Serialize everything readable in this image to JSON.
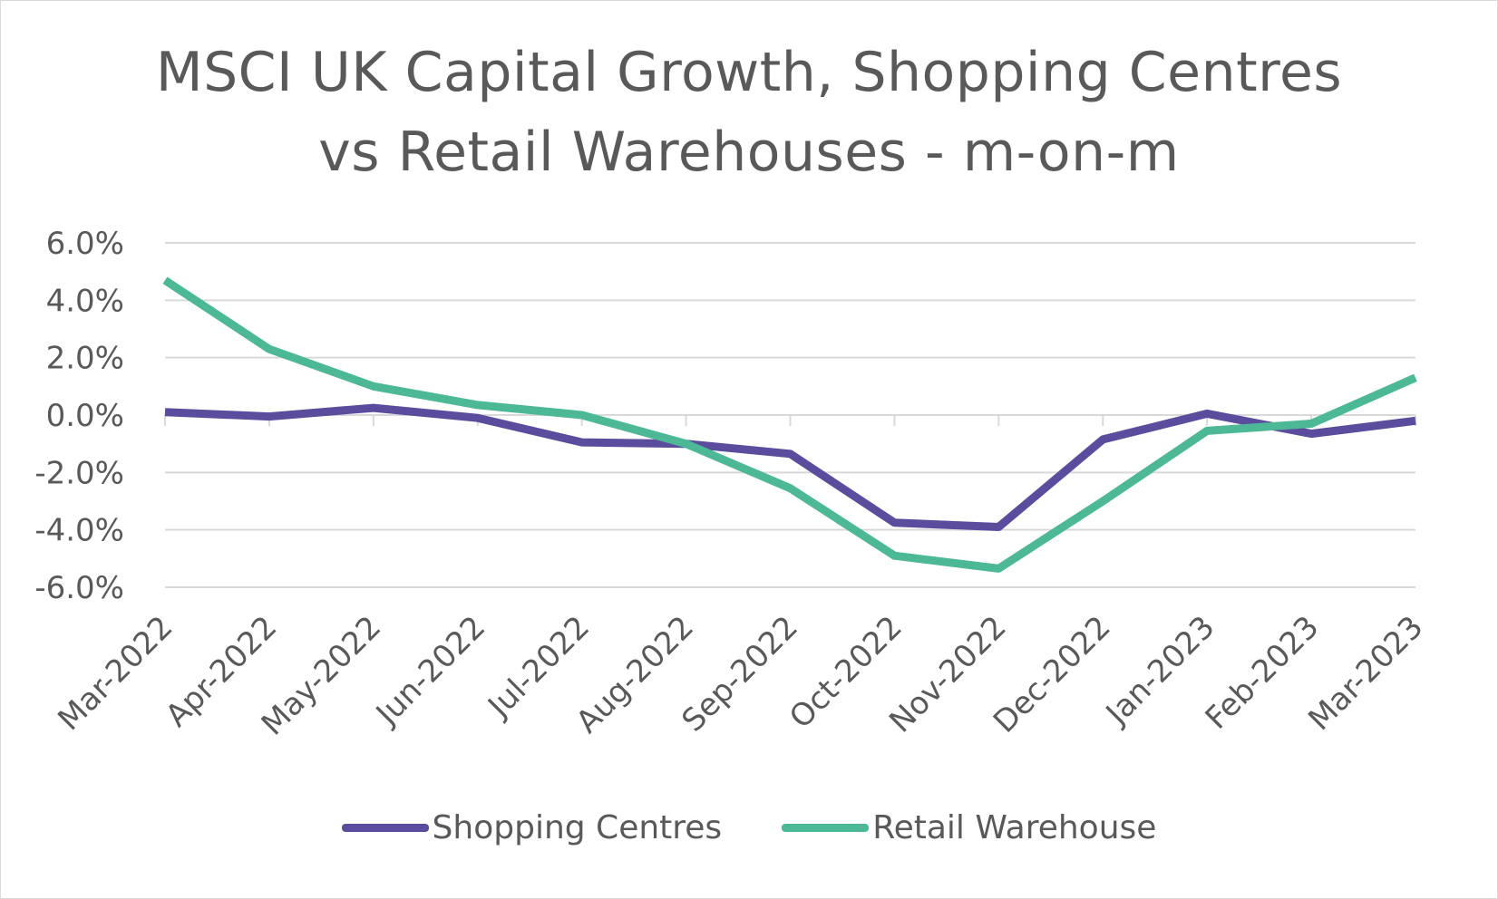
{
  "chart_data": {
    "type": "line",
    "title_lines": [
      "MSCI UK Capital Growth, Shopping Centres",
      "vs Retail Warehouses - m-on-m"
    ],
    "categories": [
      "Mar-2022",
      "Apr-2022",
      "May-2022",
      "Jun-2022",
      "Jul-2022",
      "Aug-2022",
      "Sep-2022",
      "Oct-2022",
      "Nov-2022",
      "Dec-2022",
      "Jan-2023",
      "Feb-2023",
      "Mar-2023"
    ],
    "y_ticks": [
      "6.0%",
      "4.0%",
      "2.0%",
      "0.0%",
      "-2.0%",
      "-4.0%",
      "-6.0%"
    ],
    "ylim": [
      -6,
      6
    ],
    "grid": true,
    "legend_position": "bottom",
    "series": [
      {
        "name": "Shopping Centres",
        "color": "#5b4c9e",
        "values": [
          0.1,
          -0.05,
          0.25,
          -0.1,
          -0.95,
          -1.0,
          -1.35,
          -3.75,
          -3.9,
          -0.85,
          0.05,
          -0.65,
          -0.2
        ]
      },
      {
        "name": "Retail Warehouse",
        "color": "#4db896",
        "values": [
          4.7,
          2.3,
          1.0,
          0.35,
          0.0,
          -1.0,
          -2.55,
          -4.9,
          -5.35,
          -3.0,
          -0.55,
          -0.3,
          1.3
        ]
      }
    ]
  }
}
